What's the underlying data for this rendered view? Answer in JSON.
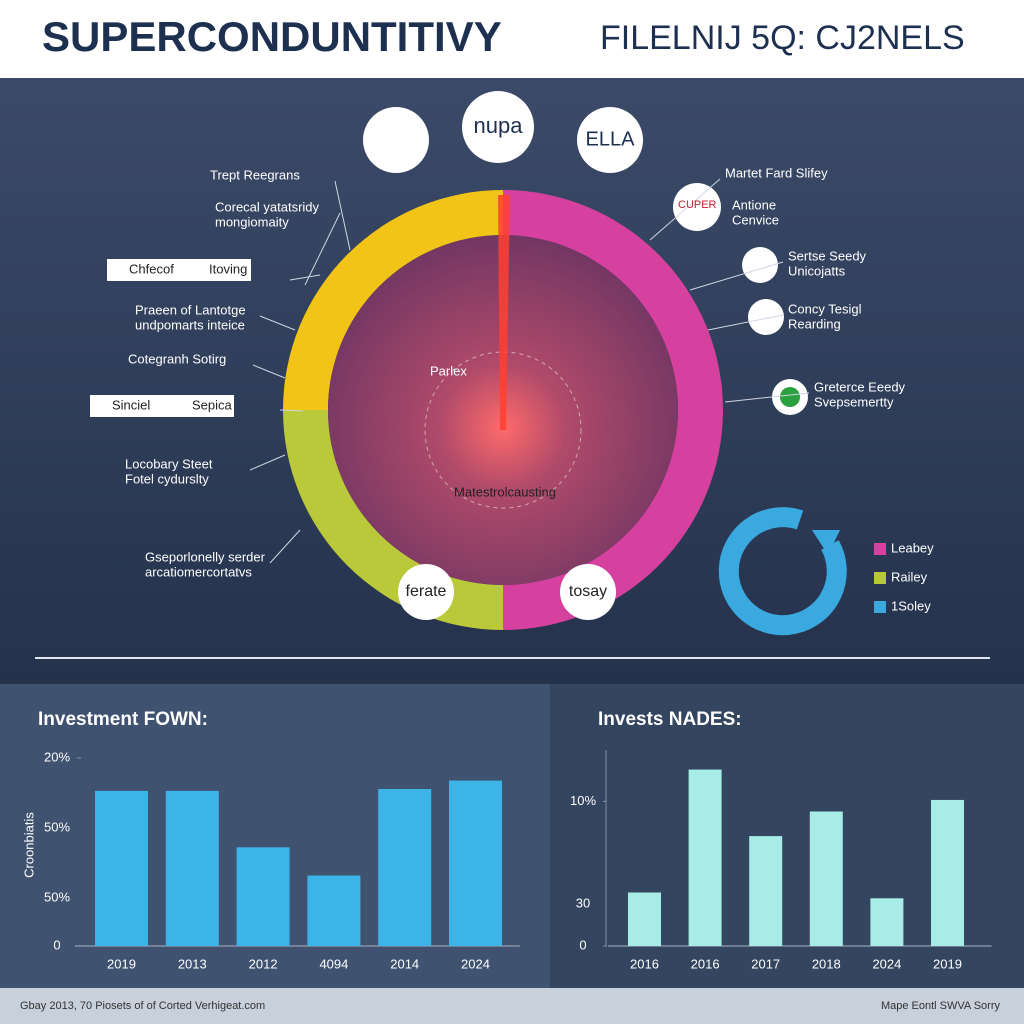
{
  "header": {
    "title": "SUPERCONDUNTITIVY",
    "subtitle": "FILELNIJ 5Q: CJ2NELS"
  },
  "diagram": {
    "top_logos": [
      "nupa",
      "ELLA"
    ],
    "center_labels": [
      "Parlex",
      "Matestrolcausting"
    ],
    "bubbles": [
      "ferate",
      "tosay"
    ],
    "left_labels": [
      [
        "Trept Reegrans"
      ],
      [
        "Corecal yatatsridy",
        "mongiomaity"
      ],
      [
        "Chfecof",
        "Itoving"
      ],
      [
        "Praeen of Lantotge",
        "undpomarts inteice"
      ],
      [
        "Cotegranh Sotirg"
      ],
      [
        "Sinciel",
        "Sepica"
      ],
      [
        "Locobary Steet",
        "Fotel cydurslty"
      ],
      [
        "Gseporlonelly serder",
        "arcatiomercortatvs"
      ]
    ],
    "right_labels": [
      [
        "Martet Fard Slifey"
      ],
      [
        "CUPER",
        "Antione",
        "Cenvice"
      ],
      [
        "Sertse Seedy",
        "Unicojatts"
      ],
      [
        "Concy Tesigl",
        "Rearding"
      ],
      [
        "Greterce Eeedy",
        "Svepsemertty"
      ]
    ],
    "legend": [
      {
        "name": "Leabey",
        "color": "#d6409f"
      },
      {
        "name": "Railey",
        "color": "#b9c93a"
      },
      {
        "name": "1Soley",
        "color": "#3aa9e0"
      }
    ]
  },
  "chart_data": [
    {
      "type": "bar",
      "title": "Investment FOWN:",
      "y_label": "Croonbiatis",
      "color": "#3db4e8",
      "categories": [
        "2019",
        "2013",
        "2012",
        "4094",
        "2014",
        "2024"
      ],
      "values": [
        16.5,
        16.5,
        10.5,
        7.5,
        16.7,
        17.6
      ],
      "ylim": [
        0,
        20
      ],
      "yticks": [
        {
          "value": 20,
          "label": "20%"
        },
        0
      ],
      "extra_tick_labels": [
        "50%",
        "50%"
      ]
    },
    {
      "type": "bar",
      "title": "Invests NADES:",
      "color": "#a8ece8",
      "categories": [
        "2016",
        "2016",
        "2017",
        "2018",
        "2024",
        "2019"
      ],
      "values": [
        3.7,
        12.2,
        7.6,
        9.3,
        3.3,
        10.1
      ],
      "ylim": [
        0,
        13
      ],
      "yticks": [
        {
          "value": 10,
          "label": "10%"
        },
        0
      ],
      "extra_tick_labels": [
        "30"
      ]
    }
  ],
  "footer": {
    "left": "Gbay 2013, 70 Piosets of of Corted Verhigeat.com",
    "right": "Mape Eontl SWVA Sorry"
  }
}
